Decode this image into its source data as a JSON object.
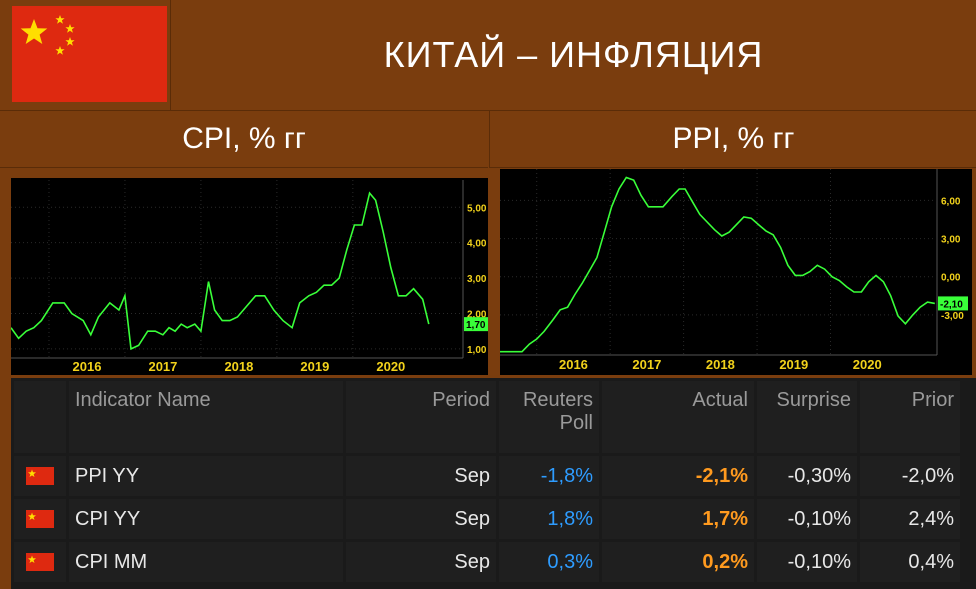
{
  "title": "КИТАЙ – ИНФЛЯЦИЯ",
  "colors": {
    "background": "#7a3d0e",
    "flag_red": "#de2910",
    "star_yellow": "#ffde00",
    "line": "#39ff39",
    "poll": "#2e9cff",
    "actual": "#ff9a1f"
  },
  "icons": {
    "flag": "china-flag-icon"
  },
  "chart_data": [
    {
      "type": "line",
      "title": "CPI, % гг",
      "x_ticks": [
        "2016",
        "2017",
        "2018",
        "2019",
        "2020"
      ],
      "y_ticks": [
        "1,00",
        "2,00",
        "3,00",
        "4,00",
        "5,00"
      ],
      "last_value_label": "1,70",
      "ylim": [
        0.8,
        5.6
      ],
      "series": [
        {
          "values": [
            {
              "x": 2015.0,
              "y": 1.6
            },
            {
              "x": 2015.1,
              "y": 1.3
            },
            {
              "x": 2015.2,
              "y": 1.5
            },
            {
              "x": 2015.3,
              "y": 1.6
            },
            {
              "x": 2015.4,
              "y": 1.8
            },
            {
              "x": 2015.55,
              "y": 2.3
            },
            {
              "x": 2015.7,
              "y": 2.3
            },
            {
              "x": 2015.8,
              "y": 2.0
            },
            {
              "x": 2015.95,
              "y": 1.8
            },
            {
              "x": 2016.05,
              "y": 1.4
            },
            {
              "x": 2016.15,
              "y": 1.9
            },
            {
              "x": 2016.3,
              "y": 2.3
            },
            {
              "x": 2016.42,
              "y": 2.1
            },
            {
              "x": 2016.5,
              "y": 2.5
            },
            {
              "x": 2016.58,
              "y": 1.0
            },
            {
              "x": 2016.68,
              "y": 1.1
            },
            {
              "x": 2016.8,
              "y": 1.5
            },
            {
              "x": 2016.9,
              "y": 1.5
            },
            {
              "x": 2017.0,
              "y": 1.4
            },
            {
              "x": 2017.08,
              "y": 1.6
            },
            {
              "x": 2017.16,
              "y": 1.5
            },
            {
              "x": 2017.24,
              "y": 1.7
            },
            {
              "x": 2017.32,
              "y": 1.6
            },
            {
              "x": 2017.42,
              "y": 1.7
            },
            {
              "x": 2017.5,
              "y": 1.5
            },
            {
              "x": 2017.6,
              "y": 2.9
            },
            {
              "x": 2017.68,
              "y": 2.1
            },
            {
              "x": 2017.78,
              "y": 1.8
            },
            {
              "x": 2017.88,
              "y": 1.8
            },
            {
              "x": 2017.98,
              "y": 1.9
            },
            {
              "x": 2018.1,
              "y": 2.2
            },
            {
              "x": 2018.22,
              "y": 2.5
            },
            {
              "x": 2018.34,
              "y": 2.5
            },
            {
              "x": 2018.46,
              "y": 2.1
            },
            {
              "x": 2018.58,
              "y": 1.8
            },
            {
              "x": 2018.7,
              "y": 1.6
            },
            {
              "x": 2018.8,
              "y": 2.3
            },
            {
              "x": 2018.92,
              "y": 2.5
            },
            {
              "x": 2019.02,
              "y": 2.6
            },
            {
              "x": 2019.12,
              "y": 2.8
            },
            {
              "x": 2019.22,
              "y": 2.8
            },
            {
              "x": 2019.32,
              "y": 3.0
            },
            {
              "x": 2019.42,
              "y": 3.8
            },
            {
              "x": 2019.52,
              "y": 4.5
            },
            {
              "x": 2019.62,
              "y": 4.5
            },
            {
              "x": 2019.72,
              "y": 5.4
            },
            {
              "x": 2019.8,
              "y": 5.2
            },
            {
              "x": 2019.9,
              "y": 4.3
            },
            {
              "x": 2020.0,
              "y": 3.3
            },
            {
              "x": 2020.1,
              "y": 2.5
            },
            {
              "x": 2020.2,
              "y": 2.5
            },
            {
              "x": 2020.3,
              "y": 2.7
            },
            {
              "x": 2020.42,
              "y": 2.4
            },
            {
              "x": 2020.5,
              "y": 1.7
            }
          ]
        }
      ]
    },
    {
      "type": "line",
      "title": "PPI, % гг",
      "x_ticks": [
        "2016",
        "2017",
        "2018",
        "2019",
        "2020"
      ],
      "y_ticks": [
        "-3,00",
        "0,00",
        "3,00",
        "6,00"
      ],
      "last_value_label": "-2,10",
      "ylim": [
        -6.0,
        8.0
      ],
      "series": [
        {
          "values": [
            {
              "x": 2015.0,
              "y": -5.9
            },
            {
              "x": 2015.15,
              "y": -5.9
            },
            {
              "x": 2015.3,
              "y": -5.9
            },
            {
              "x": 2015.4,
              "y": -5.3
            },
            {
              "x": 2015.5,
              "y": -4.9
            },
            {
              "x": 2015.6,
              "y": -4.3
            },
            {
              "x": 2015.72,
              "y": -3.4
            },
            {
              "x": 2015.82,
              "y": -2.6
            },
            {
              "x": 2015.92,
              "y": -2.4
            },
            {
              "x": 2016.02,
              "y": -1.4
            },
            {
              "x": 2016.12,
              "y": -0.5
            },
            {
              "x": 2016.22,
              "y": 0.5
            },
            {
              "x": 2016.32,
              "y": 1.5
            },
            {
              "x": 2016.42,
              "y": 3.5
            },
            {
              "x": 2016.52,
              "y": 5.5
            },
            {
              "x": 2016.62,
              "y": 6.9
            },
            {
              "x": 2016.72,
              "y": 7.8
            },
            {
              "x": 2016.82,
              "y": 7.6
            },
            {
              "x": 2016.92,
              "y": 6.4
            },
            {
              "x": 2017.02,
              "y": 5.5
            },
            {
              "x": 2017.12,
              "y": 5.5
            },
            {
              "x": 2017.22,
              "y": 5.5
            },
            {
              "x": 2017.34,
              "y": 6.3
            },
            {
              "x": 2017.44,
              "y": 6.9
            },
            {
              "x": 2017.52,
              "y": 6.9
            },
            {
              "x": 2017.62,
              "y": 5.9
            },
            {
              "x": 2017.72,
              "y": 4.9
            },
            {
              "x": 2017.82,
              "y": 4.3
            },
            {
              "x": 2017.92,
              "y": 3.7
            },
            {
              "x": 2018.02,
              "y": 3.2
            },
            {
              "x": 2018.12,
              "y": 3.5
            },
            {
              "x": 2018.22,
              "y": 4.1
            },
            {
              "x": 2018.32,
              "y": 4.7
            },
            {
              "x": 2018.42,
              "y": 4.6
            },
            {
              "x": 2018.52,
              "y": 4.1
            },
            {
              "x": 2018.62,
              "y": 3.6
            },
            {
              "x": 2018.72,
              "y": 3.3
            },
            {
              "x": 2018.82,
              "y": 2.3
            },
            {
              "x": 2018.92,
              "y": 0.9
            },
            {
              "x": 2019.02,
              "y": 0.1
            },
            {
              "x": 2019.12,
              "y": 0.1
            },
            {
              "x": 2019.22,
              "y": 0.4
            },
            {
              "x": 2019.32,
              "y": 0.9
            },
            {
              "x": 2019.42,
              "y": 0.6
            },
            {
              "x": 2019.52,
              "y": 0.0
            },
            {
              "x": 2019.62,
              "y": -0.3
            },
            {
              "x": 2019.72,
              "y": -0.8
            },
            {
              "x": 2019.82,
              "y": -1.2
            },
            {
              "x": 2019.92,
              "y": -1.2
            },
            {
              "x": 2020.02,
              "y": -0.4
            },
            {
              "x": 2020.12,
              "y": 0.1
            },
            {
              "x": 2020.22,
              "y": -0.4
            },
            {
              "x": 2020.32,
              "y": -1.5
            },
            {
              "x": 2020.42,
              "y": -3.1
            },
            {
              "x": 2020.52,
              "y": -3.7
            },
            {
              "x": 2020.62,
              "y": -3.0
            },
            {
              "x": 2020.72,
              "y": -2.4
            },
            {
              "x": 2020.82,
              "y": -2.0
            },
            {
              "x": 2020.92,
              "y": -2.1
            }
          ]
        }
      ]
    }
  ],
  "table": {
    "headers": {
      "indicator": "Indicator Name",
      "period": "Period",
      "poll_line1": "Reuters",
      "poll_line2": "Poll",
      "actual": "Actual",
      "surprise": "Surprise",
      "prior": "Prior"
    },
    "rows": [
      {
        "indicator": "PPI YY",
        "period": "Sep",
        "poll": "-1,8%",
        "actual": "-2,1%",
        "surprise": "-0,30%",
        "prior": "-2,0%"
      },
      {
        "indicator": "CPI YY",
        "period": "Sep",
        "poll": "1,8%",
        "actual": "1,7%",
        "surprise": "-0,10%",
        "prior": "2,4%"
      },
      {
        "indicator": "CPI MM",
        "period": "Sep",
        "poll": "0,3%",
        "actual": "0,2%",
        "surprise": "-0,10%",
        "prior": "0,4%"
      }
    ]
  }
}
